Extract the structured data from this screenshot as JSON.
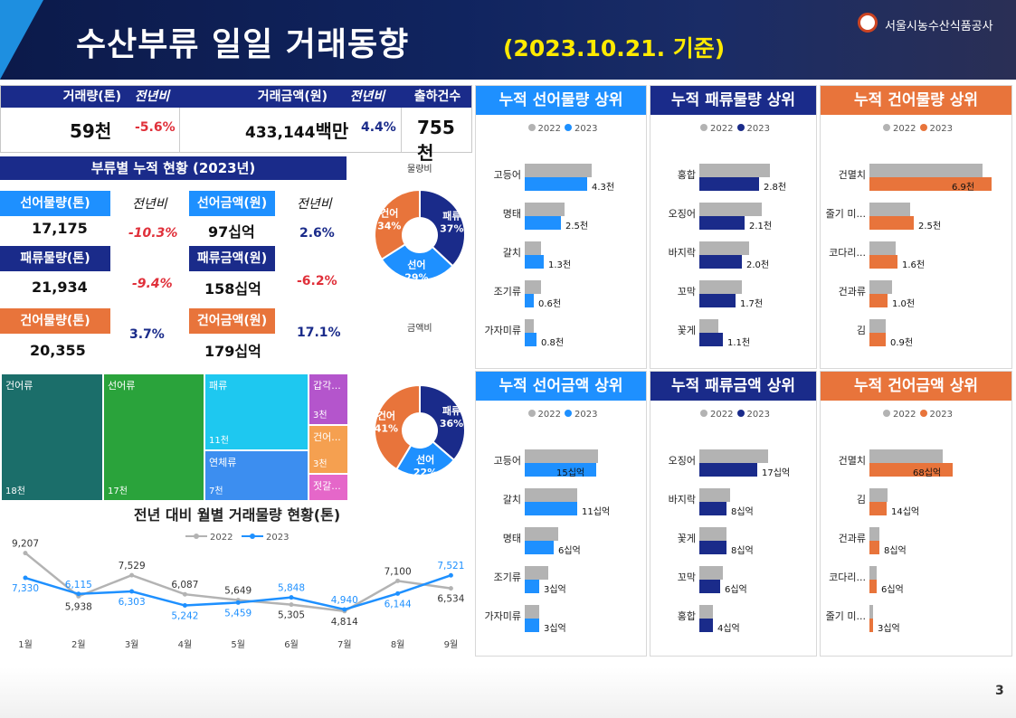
{
  "header": {
    "title": "수산부류 일일 거래동향",
    "date": "(2023.10.21. 기준)",
    "org": "서울시농수산식품공사"
  },
  "summary": {
    "headers": [
      "거래량(톤)",
      "전년비",
      "거래금액(원)",
      "전년비",
      "출하건수"
    ],
    "volume_num": "59",
    "volume_unit": "천",
    "volume_yoy": "-5.6%",
    "amount_num": "433,144",
    "amount_unit": "백만",
    "amount_yoy": "4.4%",
    "shipments_num": "755",
    "shipments_unit": "천"
  },
  "cumulative": {
    "title": "부류별 누적 현황 (2023년)",
    "yoy_label": "전년비",
    "fresh_vol_label": "선어물량(톤)",
    "fresh_vol": "17,175",
    "fresh_vol_yoy": "-10.3%",
    "fresh_amt_label": "선어금액(원)",
    "fresh_amt_num": "97",
    "fresh_amt_unit": "십억",
    "fresh_amt_yoy": "2.6%",
    "shell_vol_label": "패류물량(톤)",
    "shell_vol": "21,934",
    "shell_vol_yoy": "-9.4%",
    "shell_amt_label": "패류금액(원)",
    "shell_amt_num": "158",
    "shell_amt_unit": "십억",
    "shell_amt_yoy": "-6.2%",
    "dried_vol_label": "건어물량(톤)",
    "dried_vol": "20,355",
    "dried_vol_yoy": "3.7%",
    "dried_amt_label": "건어금액(원)",
    "dried_amt_num": "179",
    "dried_amt_unit": "십억",
    "dried_amt_yoy": "17.1%"
  },
  "colors": {
    "navy": "#1a2b8a",
    "fresh": "#1e90ff",
    "shell": "#1a2b8a",
    "dried": "#e8743b",
    "red": "#e0303a",
    "gray": "#b3b3b3",
    "fresh_title": "#1e90ff",
    "shell_title": "#1a2b8a",
    "dried_title": "#e8743b"
  },
  "donuts": {
    "volume_title": "물량비",
    "amount_title": "금액비"
  },
  "treemap": [
    {
      "name": "건어류",
      "value": "18천",
      "color": "#1b6e6a"
    },
    {
      "name": "선어류",
      "value": "17천",
      "color": "#2aa33b"
    },
    {
      "name": "패류",
      "value": "11천",
      "color": "#1ec8f0"
    },
    {
      "name": "연체류",
      "value": "7천",
      "color": "#3c8ef0"
    },
    {
      "name": "갑각...",
      "value": "3천",
      "color": "#b455cc"
    },
    {
      "name": "건어...",
      "value": "3천",
      "color": "#f5a050"
    },
    {
      "name": "젓갈...",
      "value": "",
      "color": "#e567c9"
    }
  ],
  "monthly": {
    "title": "전년 대비 월별 거래물량 현황(톤)"
  },
  "panels": [
    {
      "title": "누적 선어물량 상위",
      "color": "#1e90ff",
      "rows": [
        {
          "n": "고등어",
          "a": 4.6,
          "b": 4.3,
          "v": "4.3천"
        },
        {
          "n": "명태",
          "a": 2.7,
          "b": 2.5,
          "v": "2.5천"
        },
        {
          "n": "갈치",
          "a": 1.1,
          "b": 1.3,
          "v": "1.3천"
        },
        {
          "n": "조기류",
          "a": 1.1,
          "b": 0.6,
          "v": "0.6천"
        },
        {
          "n": "가자미류",
          "a": 0.6,
          "b": 0.8,
          "v": "0.8천"
        }
      ],
      "max": 7.8
    },
    {
      "title": "누적 패류물량 상위",
      "color": "#1a2b8a",
      "rows": [
        {
          "n": "홍합",
          "a": 3.3,
          "b": 2.8,
          "v": "2.8천"
        },
        {
          "n": "오징어",
          "a": 2.9,
          "b": 2.1,
          "v": "2.1천"
        },
        {
          "n": "바지락",
          "a": 2.3,
          "b": 2.0,
          "v": "2.0천"
        },
        {
          "n": "꼬막",
          "a": 2.0,
          "b": 1.7,
          "v": "1.7천"
        },
        {
          "n": "꽃게",
          "a": 0.9,
          "b": 1.1,
          "v": "1.1천"
        }
      ],
      "max": 5.1
    },
    {
      "title": "누적 건어물량 상위",
      "color": "#e8743b",
      "rows": [
        {
          "n": "건멸치",
          "a": 6.4,
          "b": 6.9,
          "v": "6.9천"
        },
        {
          "n": "줄기 미...",
          "a": 2.3,
          "b": 2.5,
          "v": "2.5천"
        },
        {
          "n": "코다리...",
          "a": 1.5,
          "b": 1.6,
          "v": "1.6천"
        },
        {
          "n": "건과류",
          "a": 1.3,
          "b": 1.0,
          "v": "1.0천"
        },
        {
          "n": "김",
          "a": 0.9,
          "b": 0.9,
          "v": "0.9천"
        }
      ],
      "max": 7.6
    },
    {
      "title": "누적 선어금액 상위",
      "color": "#1e90ff",
      "rows": [
        {
          "n": "고등어",
          "a": 15.5,
          "b": 15,
          "v": "15십억"
        },
        {
          "n": "갈치",
          "a": 11,
          "b": 11,
          "v": "11십억"
        },
        {
          "n": "명태",
          "a": 7,
          "b": 6,
          "v": "6십억"
        },
        {
          "n": "조기류",
          "a": 5,
          "b": 3,
          "v": "3십억"
        },
        {
          "n": "가자미류",
          "a": 3,
          "b": 3,
          "v": "3십억"
        }
      ],
      "max": 24
    },
    {
      "title": "누적 패류금액 상위",
      "color": "#1a2b8a",
      "rows": [
        {
          "n": "오징어",
          "a": 20,
          "b": 17,
          "v": "17십억"
        },
        {
          "n": "바지락",
          "a": 9,
          "b": 8,
          "v": "8십억"
        },
        {
          "n": "꽃게",
          "a": 8,
          "b": 8,
          "v": "8십억"
        },
        {
          "n": "꼬막",
          "a": 7,
          "b": 6,
          "v": "6십억"
        },
        {
          "n": "홍합",
          "a": 4,
          "b": 4,
          "v": "4십억"
        }
      ],
      "max": 32
    },
    {
      "title": "누적 건어금액 상위",
      "color": "#e8743b",
      "rows": [
        {
          "n": "건멸치",
          "a": 60,
          "b": 68,
          "v": "68십억"
        },
        {
          "n": "김",
          "a": 15,
          "b": 14,
          "v": "14십억"
        },
        {
          "n": "건과류",
          "a": 8,
          "b": 8,
          "v": "8십억"
        },
        {
          "n": "코다리...",
          "a": 6,
          "b": 6,
          "v": "6십억"
        },
        {
          "n": "줄기 미...",
          "a": 3,
          "b": 3,
          "v": "3십억"
        }
      ],
      "max": 110
    }
  ],
  "legend": {
    "y2022": "2022",
    "y2023": "2023"
  },
  "page_number": "3",
  "chart_data": [
    {
      "type": "pie",
      "title": "물량비",
      "slices": [
        {
          "label": "패류",
          "value": 37
        },
        {
          "label": "선어",
          "value": 29
        },
        {
          "label": "건어",
          "value": 34
        }
      ]
    },
    {
      "type": "pie",
      "title": "금액비",
      "slices": [
        {
          "label": "패류",
          "value": 36
        },
        {
          "label": "선어",
          "value": 22
        },
        {
          "label": "건어",
          "value": 41
        }
      ]
    },
    {
      "type": "line",
      "title": "전년 대비 월별 거래물량 현황(톤)",
      "categories": [
        "1월",
        "2월",
        "3월",
        "4월",
        "5월",
        "6월",
        "7월",
        "8월",
        "9월"
      ],
      "series": [
        {
          "name": "2022",
          "values": [
            9207,
            5938,
            7529,
            6087,
            5649,
            5305,
            4814,
            7100,
            6534
          ]
        },
        {
          "name": "2023",
          "values": [
            7330,
            6115,
            6303,
            5242,
            5459,
            5848,
            4940,
            6144,
            7521
          ]
        }
      ],
      "ylim": [
        3500,
        10000
      ]
    }
  ]
}
